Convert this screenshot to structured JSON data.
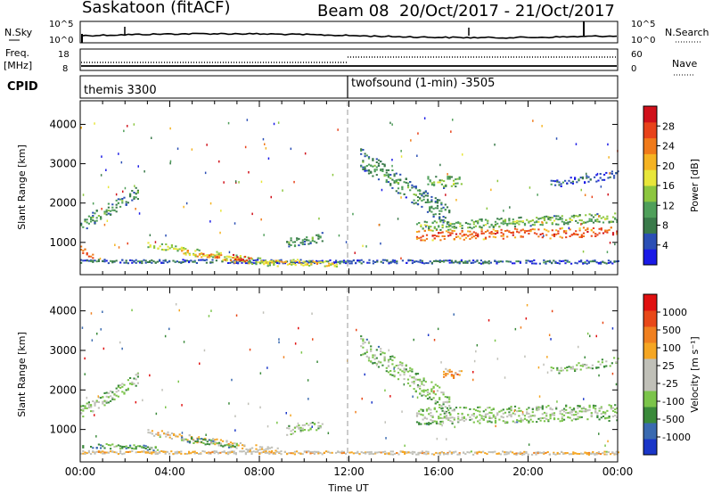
{
  "header": {
    "radar_title": "Saskatoon (fitACF)",
    "beam": "Beam 08",
    "date_range": "20/Oct/2017 - 21/Oct/2017"
  },
  "top_panels": {
    "nsky": {
      "label": "N.Sky",
      "ticks": [
        "10^5",
        "10^0"
      ],
      "right_ticks": [
        "10^5",
        "10^0"
      ],
      "right_label": "N.Search"
    },
    "freq": {
      "label_line1": "Freq.",
      "label_line2": "[MHz]",
      "ticks": [
        "18",
        "8"
      ],
      "right_ticks": [
        "60",
        "0"
      ],
      "right_label": "Nave"
    },
    "cpid": {
      "label": "CPID",
      "programs": [
        {
          "name": "themis 3300",
          "start_hour": 0
        },
        {
          "name": "twofsound (1-min) -3505",
          "start_hour": 12
        }
      ]
    }
  },
  "chart_data": [
    {
      "type": "heatmap",
      "name": "power",
      "ylabel": "Slant Range [km]",
      "xlabel": "",
      "ylim": [
        180,
        4600
      ],
      "xlim": [
        0,
        24
      ],
      "yticks": [
        1000,
        2000,
        3000,
        4000
      ],
      "colorbar": {
        "label": "Power [dB]",
        "ticks": [
          "28",
          "24",
          "20",
          "16",
          "12",
          "8",
          "4"
        ],
        "colors": [
          "#1a1ae6",
          "#2b4fb5",
          "#3a7a4a",
          "#4f9f5a",
          "#8cc63f",
          "#e8e63a",
          "#f5b322",
          "#f07a1a",
          "#e8421a",
          "#d0101a"
        ]
      },
      "divider_hour": 12,
      "bands": [
        {
          "t0": 0.0,
          "t1": 2.6,
          "r0": 1450,
          "r1": 2300,
          "w": 330,
          "c": 3
        },
        {
          "t0": 0.0,
          "t1": 24.0,
          "r0": 540,
          "r1": 520,
          "w": 90,
          "c": 2
        },
        {
          "t0": 0.0,
          "t1": 0.6,
          "r0": 820,
          "r1": 700,
          "w": 200,
          "c": 8
        },
        {
          "t0": 3.0,
          "t1": 8.8,
          "r0": 960,
          "r1": 460,
          "w": 170,
          "c": 5
        },
        {
          "t0": 4.5,
          "t1": 7.0,
          "r0": 800,
          "r1": 560,
          "w": 150,
          "c": 7
        },
        {
          "t0": 6.8,
          "t1": 7.6,
          "r0": 640,
          "r1": 560,
          "w": 170,
          "c": 9
        },
        {
          "t0": 8.0,
          "t1": 11.5,
          "r0": 560,
          "r1": 460,
          "w": 140,
          "c": 6
        },
        {
          "t0": 9.2,
          "t1": 10.8,
          "r0": 1000,
          "r1": 1150,
          "w": 240,
          "c": 3
        },
        {
          "t0": 12.5,
          "t1": 16.5,
          "r0": 3150,
          "r1": 1650,
          "w": 520,
          "c": 3
        },
        {
          "t0": 15.0,
          "t1": 24.0,
          "r0": 1200,
          "r1": 1280,
          "w": 260,
          "c": 8
        },
        {
          "t0": 15.0,
          "t1": 24.0,
          "r0": 1420,
          "r1": 1650,
          "w": 240,
          "c": 4
        },
        {
          "t0": 21.0,
          "t1": 24.0,
          "r0": 2500,
          "r1": 2750,
          "w": 200,
          "c": 2
        },
        {
          "t0": 15.5,
          "t1": 17.0,
          "r0": 2550,
          "r1": 2550,
          "w": 300,
          "c": 4
        }
      ]
    },
    {
      "type": "heatmap",
      "name": "velocity",
      "ylabel": "Slant Range [km]",
      "xlabel": "Time UT",
      "ylim": [
        180,
        4600
      ],
      "xlim": [
        0,
        24
      ],
      "yticks": [
        1000,
        2000,
        3000,
        4000
      ],
      "xtick_labels": [
        "00:00",
        "04:00",
        "08:00",
        "12:00",
        "16:00",
        "20:00",
        "00:00"
      ],
      "colorbar": {
        "label": "Velocity [m s⁻¹]",
        "ticks": [
          "1000",
          "500",
          "100",
          "25",
          "-25",
          "-100",
          "-500",
          "-1000"
        ],
        "colors": [
          "#1a36c8",
          "#3a6ab0",
          "#3a8a3a",
          "#7bc44a",
          "#c0c0b8",
          "#c0c0b8",
          "#f5a623",
          "#f08020",
          "#e84818",
          "#e01010"
        ]
      },
      "divider_hour": 12,
      "bands": [
        {
          "t0": 0.0,
          "t1": 2.6,
          "r0": 1450,
          "r1": 2300,
          "w": 330,
          "c": 4
        },
        {
          "t0": 0.0,
          "t1": 3.5,
          "r0": 620,
          "r1": 540,
          "w": 120,
          "c": 3
        },
        {
          "t0": 0.0,
          "t1": 24.0,
          "r0": 440,
          "r1": 420,
          "w": 80,
          "c": 6
        },
        {
          "t0": 3.0,
          "t1": 8.8,
          "r0": 960,
          "r1": 460,
          "w": 170,
          "c": 6
        },
        {
          "t0": 4.5,
          "t1": 7.0,
          "r0": 780,
          "r1": 600,
          "w": 140,
          "c": 3
        },
        {
          "t0": 9.2,
          "t1": 10.8,
          "r0": 1000,
          "r1": 1150,
          "w": 240,
          "c": 4
        },
        {
          "t0": 12.5,
          "t1": 16.5,
          "r0": 3150,
          "r1": 1650,
          "w": 520,
          "c": 4
        },
        {
          "t0": 15.0,
          "t1": 24.0,
          "r0": 1350,
          "r1": 1450,
          "w": 420,
          "c": 4
        },
        {
          "t0": 16.2,
          "t1": 17.0,
          "r0": 2450,
          "r1": 2350,
          "w": 300,
          "c": 7
        },
        {
          "t0": 21.0,
          "t1": 24.0,
          "r0": 2500,
          "r1": 2750,
          "w": 200,
          "c": 4
        }
      ]
    }
  ]
}
